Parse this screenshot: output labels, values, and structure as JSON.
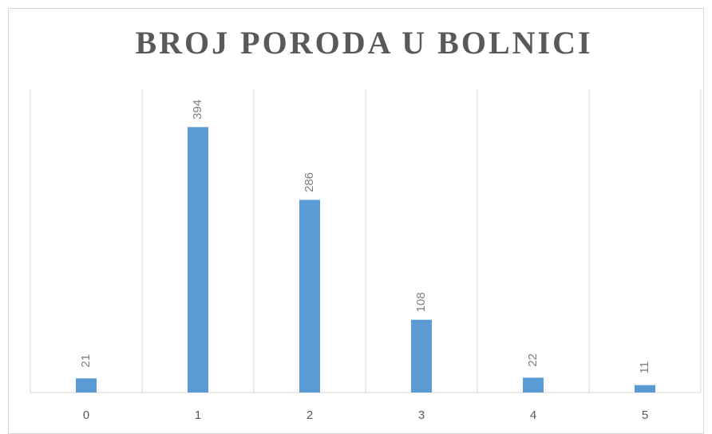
{
  "chart_data": {
    "type": "bar",
    "title": "BROJ PORODA U BOLNICI",
    "categories": [
      "0",
      "1",
      "2",
      "3",
      "4",
      "5"
    ],
    "values": [
      21,
      394,
      286,
      108,
      22,
      11
    ],
    "color": "#5b9bd5",
    "ylim": [
      0,
      450
    ]
  }
}
